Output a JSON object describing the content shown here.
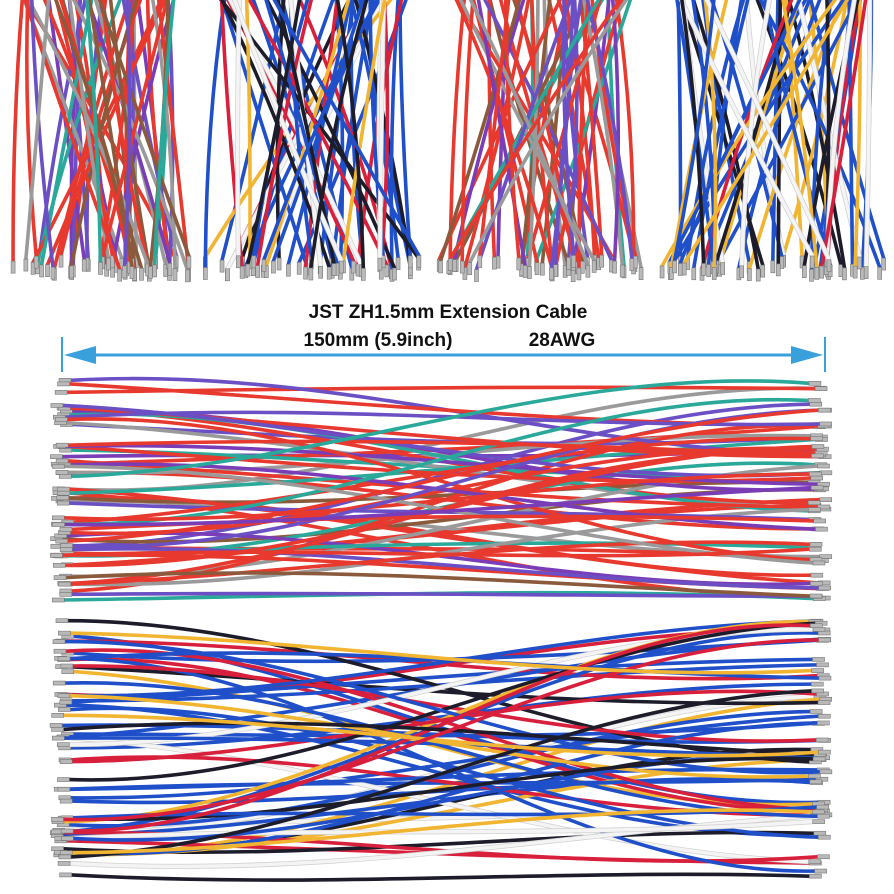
{
  "title": "JST ZH1.5mm Extension Cable",
  "length": "150mm (5.9inch)",
  "gauge": "28AWG"
}
